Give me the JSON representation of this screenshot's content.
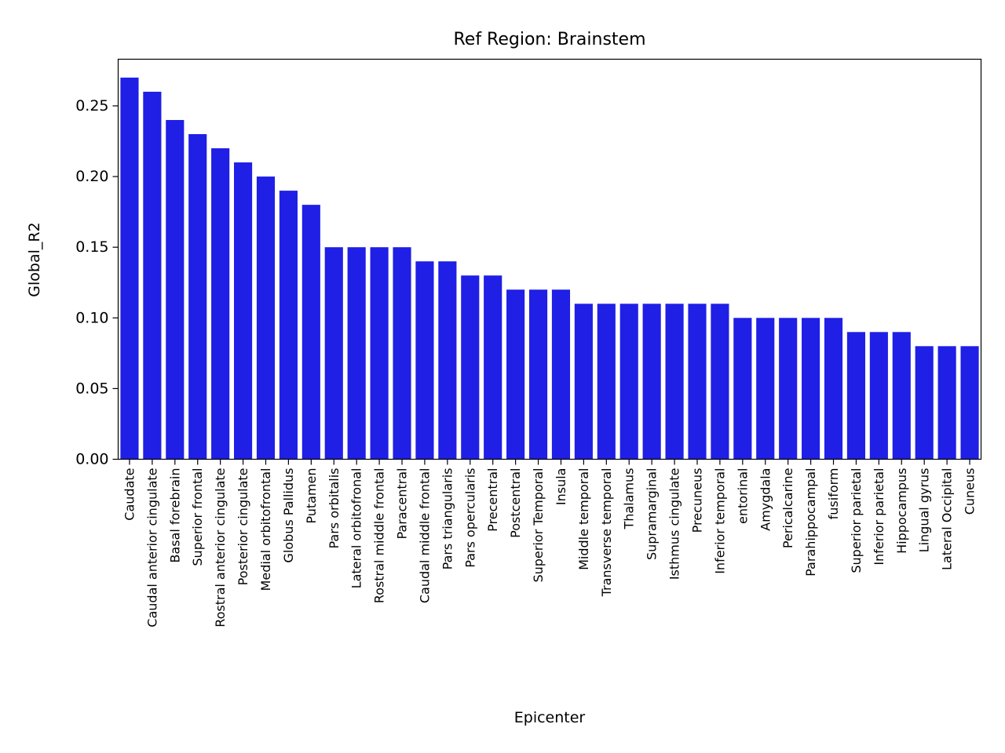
{
  "chart_data": {
    "type": "bar",
    "title": "Ref Region: Brainstem",
    "xlabel": "Epicenter",
    "ylabel": "Global_R2",
    "ylim": [
      0,
      0.283
    ],
    "yticks": [
      "0.00",
      "0.05",
      "0.10",
      "0.15",
      "0.20",
      "0.25"
    ],
    "ytick_values": [
      0,
      0.05,
      0.1,
      0.15,
      0.2,
      0.25
    ],
    "bar_color": "#1f1fe6",
    "grid": false,
    "categories": [
      "Caudate",
      "Caudal anterior cingulate",
      "Basal forebrain",
      "Superior frontal",
      "Rostral anterior cingulate",
      "Posterior cingulate",
      "Medial orbitofrontal",
      "Globus Pallidus",
      "Putamen",
      "Pars orbitalis",
      "Lateral orbitofronal",
      "Rostral middle frontal",
      "Paracentral",
      "Caudal middle frontal",
      "Pars triangularis",
      "Pars opercularis",
      "Precentral",
      "Postcentral",
      "Superior Temporal",
      "Insula",
      "Middle temporal",
      "Transverse temporal",
      "Thalamus",
      "Supramarginal",
      "Isthmus cingulate",
      "Precuneus",
      "Inferior temporal",
      "entorinal",
      "Amygdala",
      "Pericalcarine",
      "Parahippocampal",
      "fusiform",
      "Superior parietal",
      "Inferior parietal",
      "Hippocampus",
      "Lingual gyrus",
      "Lateral Occipital",
      "Cuneus"
    ],
    "values": [
      0.27,
      0.26,
      0.24,
      0.23,
      0.22,
      0.21,
      0.2,
      0.19,
      0.18,
      0.15,
      0.15,
      0.15,
      0.15,
      0.14,
      0.14,
      0.13,
      0.13,
      0.12,
      0.12,
      0.12,
      0.11,
      0.11,
      0.11,
      0.11,
      0.11,
      0.11,
      0.11,
      0.1,
      0.1,
      0.1,
      0.1,
      0.1,
      0.09,
      0.09,
      0.09,
      0.08,
      0.08,
      0.08
    ]
  }
}
